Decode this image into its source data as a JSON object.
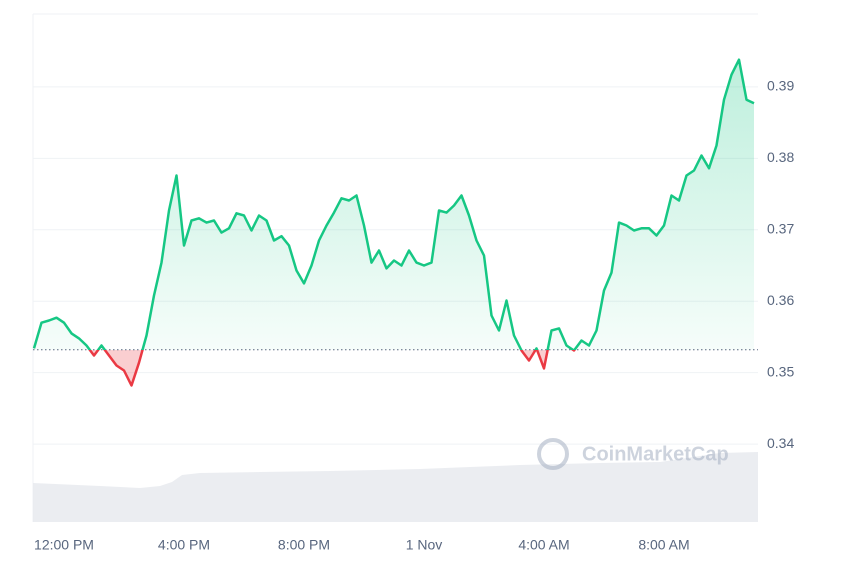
{
  "chart_data": {
    "type": "line",
    "watermark": "CoinMarketCap",
    "categories": [
      null,
      null,
      null,
      null,
      "12:00 PM",
      null,
      null,
      null,
      null,
      null,
      null,
      null,
      null,
      null,
      null,
      null,
      null,
      null,
      null,
      null,
      "4:00 PM",
      null,
      null,
      null,
      null,
      null,
      null,
      null,
      null,
      null,
      null,
      null,
      null,
      null,
      null,
      null,
      "8:00 PM",
      null,
      null,
      null,
      null,
      null,
      null,
      null,
      null,
      null,
      null,
      null,
      null,
      null,
      null,
      null,
      "1 Nov",
      null,
      null,
      null,
      null,
      null,
      null,
      null,
      null,
      null,
      null,
      null,
      null,
      null,
      null,
      null,
      "4:00 AM",
      null,
      null,
      null,
      null,
      null,
      null,
      null,
      null,
      null,
      null,
      null,
      null,
      null,
      null,
      null,
      "8:00 AM",
      null,
      null,
      null,
      null,
      null,
      null,
      null,
      null,
      null,
      null,
      null,
      null
    ],
    "values": [
      0.3534,
      0.357,
      0.3573,
      0.3577,
      0.357,
      0.3555,
      0.3548,
      0.3538,
      0.3524,
      0.3538,
      0.3524,
      0.351,
      0.3503,
      0.3482,
      0.3514,
      0.3552,
      0.3608,
      0.3654,
      0.3727,
      0.3776,
      0.3678,
      0.3713,
      0.3716,
      0.371,
      0.3713,
      0.3696,
      0.3702,
      0.3723,
      0.372,
      0.3699,
      0.372,
      0.3713,
      0.3685,
      0.3691,
      0.3678,
      0.3643,
      0.3625,
      0.365,
      0.3685,
      0.3706,
      0.3724,
      0.3744,
      0.3741,
      0.3748,
      0.3706,
      0.3654,
      0.3671,
      0.3646,
      0.3657,
      0.365,
      0.3671,
      0.3654,
      0.365,
      0.3654,
      0.3727,
      0.3724,
      0.3734,
      0.3748,
      0.372,
      0.3685,
      0.3664,
      0.358,
      0.3559,
      0.3601,
      0.3552,
      0.3531,
      0.3517,
      0.3534,
      0.3506,
      0.3559,
      0.3562,
      0.3538,
      0.3531,
      0.3545,
      0.3538,
      0.3559,
      0.3615,
      0.364,
      0.371,
      0.3706,
      0.3699,
      0.3702,
      0.3702,
      0.3692,
      0.3706,
      0.3748,
      0.3741,
      0.3776,
      0.3783,
      0.3804,
      0.3786,
      0.3818,
      0.3882,
      0.3917,
      0.3938,
      0.3882,
      0.3877
    ],
    "baseline": 0.3532,
    "up_color": "#16c784",
    "down_color": "#ea3943",
    "ylim": [
      0.3291,
      0.4002
    ],
    "yticks": [
      0.34,
      0.35,
      0.36,
      0.37,
      0.38,
      0.39
    ],
    "grid": true
  }
}
